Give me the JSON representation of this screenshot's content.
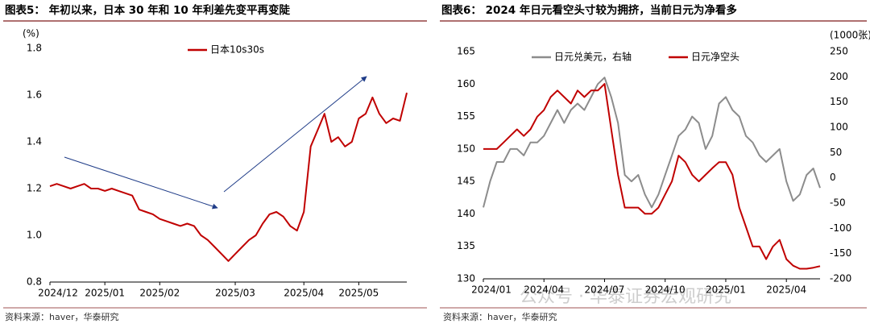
{
  "chart_data": [
    {
      "type": "line",
      "title": "图表5： 年初以来，日本 30 年和 10 年利差先变平再变陡",
      "y_unit": "(%)",
      "source": "资料来源：haver，华泰研究",
      "categories": [
        "2024/12",
        null,
        null,
        null,
        null,
        null,
        null,
        null,
        "2025/01",
        null,
        null,
        null,
        null,
        null,
        null,
        null,
        "2025/02",
        null,
        null,
        null,
        null,
        null,
        null,
        null,
        null,
        null,
        null,
        "2025/03",
        null,
        null,
        null,
        null,
        null,
        null,
        null,
        null,
        null,
        "2025/04",
        null,
        null,
        null,
        null,
        null,
        null,
        null,
        "2025/05",
        null,
        null,
        null,
        null,
        null,
        null,
        null
      ],
      "series": [
        {
          "name": "日本10s30s",
          "color": "#c00000",
          "values": [
            1.21,
            1.22,
            1.21,
            1.2,
            1.21,
            1.22,
            1.2,
            1.2,
            1.19,
            1.2,
            1.19,
            1.18,
            1.17,
            1.11,
            1.1,
            1.09,
            1.07,
            1.06,
            1.05,
            1.04,
            1.05,
            1.04,
            1.0,
            0.98,
            0.95,
            0.92,
            0.89,
            0.92,
            0.95,
            0.98,
            1.0,
            1.05,
            1.09,
            1.1,
            1.08,
            1.04,
            1.02,
            1.1,
            1.38,
            1.45,
            1.52,
            1.4,
            1.42,
            1.38,
            1.4,
            1.5,
            1.52,
            1.59,
            1.52,
            1.48,
            1.5,
            1.49,
            1.61
          ]
        }
      ],
      "ylim": [
        0.8,
        1.8
      ],
      "yticks": [
        0.8,
        {
          "value": 1.0,
          "label": "1.0"
        },
        1.2,
        1.4,
        1.6,
        1.8
      ],
      "legend": "top"
    },
    {
      "type": "line",
      "title": "图表6： 2024 年日元看空头寸较为拥挤，当前日元为净看多",
      "y2_unit": "(1000张)",
      "source": "资料来源：haver，华泰研究",
      "categories": [
        "2024/01",
        null,
        null,
        null,
        null,
        null,
        null,
        null,
        null,
        "2024/04",
        null,
        null,
        null,
        null,
        null,
        null,
        null,
        null,
        "2024/07",
        null,
        null,
        null,
        null,
        null,
        null,
        null,
        null,
        "2024/10",
        null,
        null,
        null,
        null,
        null,
        null,
        null,
        null,
        "2025/01",
        null,
        null,
        null,
        null,
        null,
        null,
        null,
        null,
        "2025/04",
        null,
        null,
        null,
        null,
        null
      ],
      "series": [
        {
          "name": "日元兑美元，右轴",
          "color": "#8c8c8c",
          "values": [
            141,
            145,
            148,
            148,
            150,
            150,
            149,
            151,
            151,
            152,
            154,
            156,
            154,
            156,
            157,
            156,
            158,
            160,
            161,
            158,
            154,
            146,
            145,
            146,
            143,
            141,
            143,
            146,
            149,
            152,
            153,
            155,
            154,
            150,
            152,
            157,
            158,
            156,
            155,
            152,
            151,
            149,
            148,
            149,
            150,
            145,
            142,
            143,
            146,
            147,
            144
          ]
        },
        {
          "name": "日元净空头",
          "color": "#c00000",
          "axis": "y2",
          "values": [
            57,
            57,
            57,
            70,
            83,
            96,
            83,
            96,
            121,
            134,
            160,
            173,
            160,
            147,
            173,
            160,
            173,
            173,
            186,
            96,
            6,
            -59,
            -59,
            -59,
            -71,
            -71,
            -59,
            -33,
            -7,
            44,
            31,
            6,
            -7,
            6,
            19,
            31,
            31,
            6,
            -59,
            -97,
            -136,
            -136,
            -161,
            -136,
            -123,
            -161,
            -174,
            -180,
            -180,
            -178,
            -175
          ]
        }
      ],
      "ylim": [
        130,
        165
      ],
      "yticks": [
        130,
        135,
        140,
        145,
        150,
        155,
        160,
        165
      ],
      "y2lim": [
        -200,
        250
      ],
      "y2ticks": [
        -200,
        -150,
        -100,
        -50,
        0,
        50,
        100,
        150,
        200,
        250
      ],
      "legend": "top"
    }
  ],
  "watermark": "公众号 · 华泰证券宏观研究"
}
